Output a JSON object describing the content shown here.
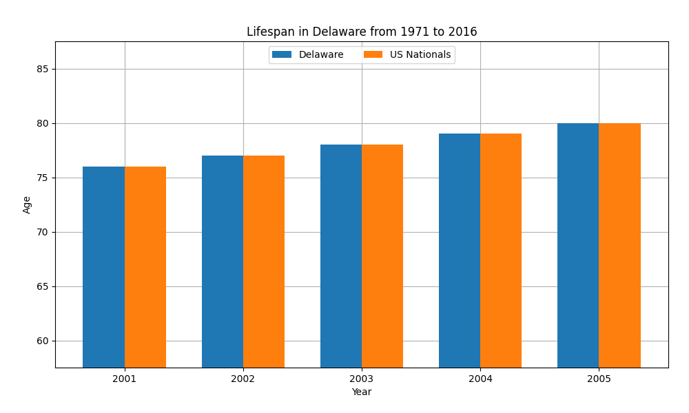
{
  "chart_data": {
    "type": "bar",
    "title": "Lifespan in Delaware from 1971 to 2016",
    "x_label": "Year",
    "y_label": "Age",
    "categories": [
      "2001",
      "2002",
      "2003",
      "2004",
      "2005"
    ],
    "series": [
      {
        "name": "Delaware",
        "values": [
          76.0,
          77.0,
          78.0,
          79.0,
          80.0
        ]
      },
      {
        "name": "US Nationals",
        "values": [
          76.0,
          77.0,
          78.0,
          79.0,
          80.0
        ]
      }
    ],
    "ylim": [
      57.5,
      87.5
    ],
    "yticks": [
      60,
      65,
      70,
      75,
      80,
      85
    ],
    "grid": true,
    "legend": "upper center"
  }
}
